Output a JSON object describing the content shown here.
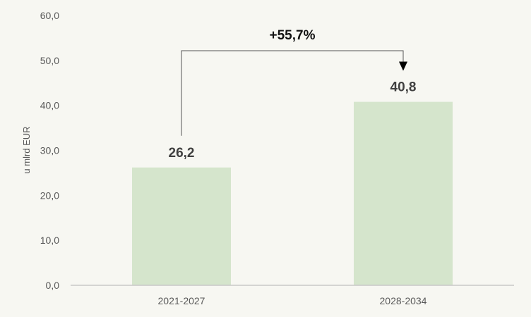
{
  "chart_data": {
    "type": "bar",
    "categories": [
      "2021-2027",
      "2028-2034"
    ],
    "values": [
      26.2,
      40.8
    ],
    "value_labels": [
      "26,2",
      "40,8"
    ],
    "ylabel": "u mlrd EUR",
    "ylim": [
      0,
      60
    ],
    "yticks": [
      0,
      10,
      20,
      30,
      40,
      50,
      60
    ],
    "ytick_labels": [
      "0,0",
      "10,0",
      "20,0",
      "30,0",
      "40,0",
      "50,0",
      "60,0"
    ],
    "grid": false,
    "legend": "none",
    "annotation": {
      "text": "+55,7%",
      "from": "2021-2027",
      "to": "2028-2034"
    },
    "colors": {
      "bar": "#d5e5cc",
      "axis": "#c8c8c8",
      "bracket": "#555555"
    }
  }
}
